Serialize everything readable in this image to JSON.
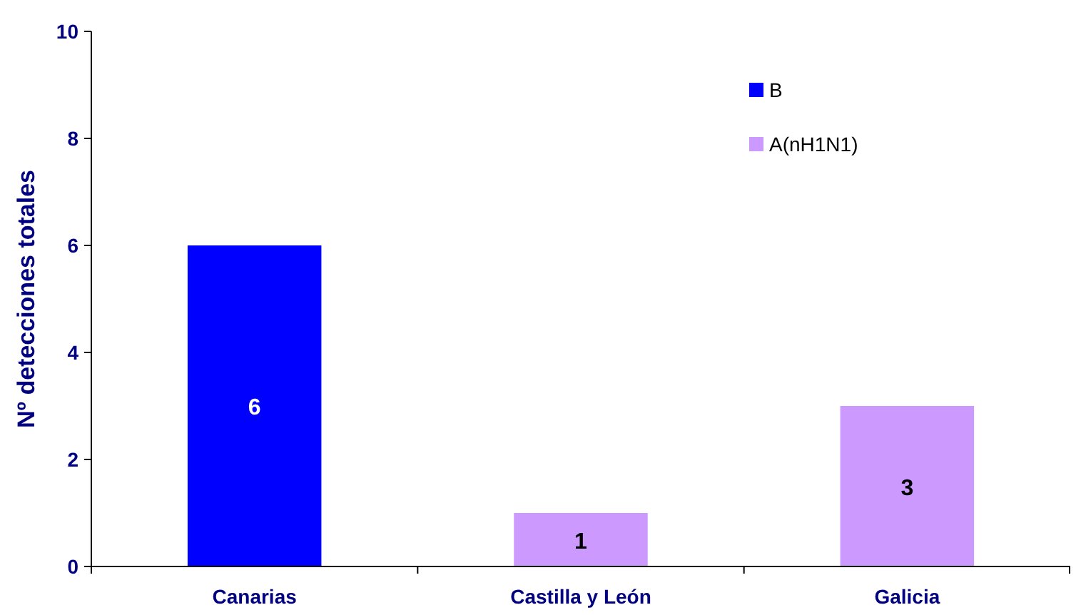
{
  "chart_data": {
    "type": "bar",
    "ylabel": "Nº detecciones totales",
    "categories": [
      "Canarias",
      "Castilla y León",
      "Galicia"
    ],
    "stacked": true,
    "ylim": [
      0,
      10
    ],
    "yticks": [
      0,
      2,
      4,
      6,
      8,
      10
    ],
    "grid": false,
    "legend": "top right",
    "series": [
      {
        "name": "B",
        "color": "#0000ff",
        "values": [
          6,
          null,
          null
        ],
        "value_labels": [
          "6",
          null,
          null
        ]
      },
      {
        "name": "A(nH1N1)",
        "color": "#cc99ff",
        "values": [
          null,
          1,
          3
        ],
        "value_labels": [
          null,
          "1",
          "3"
        ]
      }
    ]
  }
}
